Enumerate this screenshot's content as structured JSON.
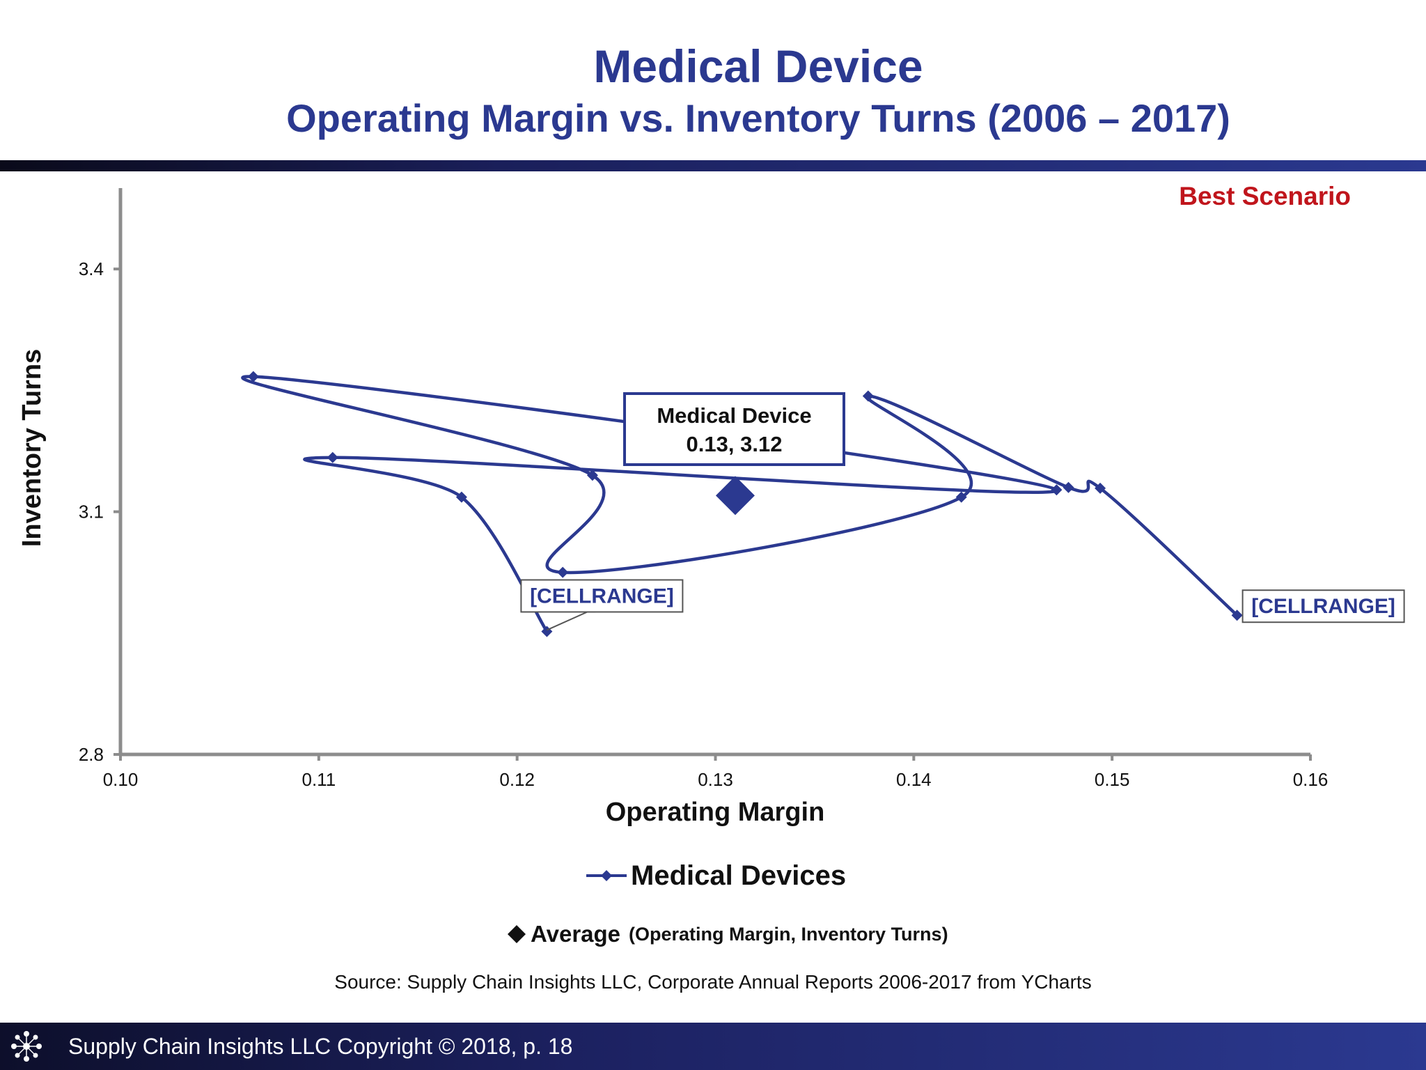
{
  "header": {
    "title": "Medical Device",
    "subtitle": "Operating Margin vs. Inventory Turns (2006 – 2017)"
  },
  "chart_data": {
    "type": "line",
    "scenario_label": "Best Scenario",
    "xlabel": "Operating Margin",
    "ylabel": "Inventory Turns",
    "xlim": [
      0.1,
      0.16
    ],
    "ylim": [
      2.8,
      3.5
    ],
    "x_ticks": [
      "0.10",
      "0.11",
      "0.12",
      "0.13",
      "0.14",
      "0.15",
      "0.16"
    ],
    "y_ticks": [
      "2.8",
      "3.1",
      "3.4"
    ],
    "grid": false,
    "series": [
      {
        "name": "Medical Devices",
        "color": "#2b3990",
        "marker": "diamond",
        "smooth": true,
        "points": [
          {
            "x": 0.1215,
            "y": 2.952
          },
          {
            "x": 0.1172,
            "y": 3.118
          },
          {
            "x": 0.1107,
            "y": 3.167
          },
          {
            "x": 0.1472,
            "y": 3.127
          },
          {
            "x": 0.1067,
            "y": 3.267
          },
          {
            "x": 0.1238,
            "y": 3.145
          },
          {
            "x": 0.1223,
            "y": 3.025
          },
          {
            "x": 0.1424,
            "y": 3.118
          },
          {
            "x": 0.1377,
            "y": 3.243
          },
          {
            "x": 0.1478,
            "y": 3.13
          },
          {
            "x": 0.1494,
            "y": 3.129
          },
          {
            "x": 0.1563,
            "y": 2.972
          }
        ]
      }
    ],
    "average": {
      "name": "Average",
      "x": 0.131,
      "y": 3.12,
      "color": "#2b3990",
      "callout_line1": "Medical Device",
      "callout_line2": "0.13, 3.12"
    },
    "annotations": [
      {
        "text": "[CELLRANGE]",
        "x": 0.1215,
        "y": 2.952
      },
      {
        "text": "[CELLRANGE]",
        "x": 0.1563,
        "y": 2.972
      }
    ]
  },
  "legend": {
    "series_label": "Medical Devices",
    "average_label": "Average",
    "average_note": "(Operating Margin, Inventory Turns)"
  },
  "source": "Source:  Supply Chain Insights LLC, Corporate Annual Reports 2006-2017 from YCharts",
  "footer": {
    "text": "Supply Chain Insights LLC Copyright © 2018, p. 18",
    "logo_icon": "network-logo-icon"
  }
}
